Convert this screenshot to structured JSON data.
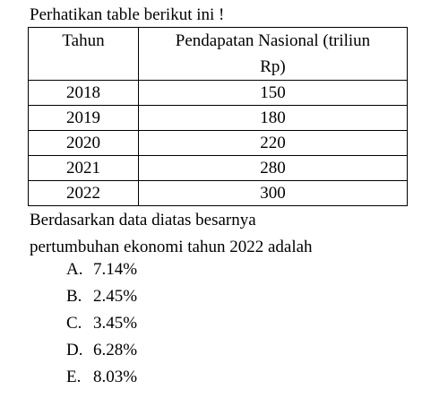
{
  "intro": "Perhatikan table berikut ini !",
  "table": {
    "headers": {
      "year": "Tahun",
      "income_line1": "Pendapatan Nasional (triliun",
      "income_line2": "Rp)"
    },
    "rows": [
      {
        "year": "2018",
        "value": "150"
      },
      {
        "year": "2019",
        "value": "180"
      },
      {
        "year": "2020",
        "value": "220"
      },
      {
        "year": "2021",
        "value": "280"
      },
      {
        "year": "2022",
        "value": "300"
      }
    ]
  },
  "question": {
    "line1": "Berdasarkan data diatas besarnya",
    "line2": "pertumbuhan ekonomi tahun 2022 adalah"
  },
  "options": [
    {
      "letter": "A.",
      "text": "7.14%"
    },
    {
      "letter": "B.",
      "text": "2.45%"
    },
    {
      "letter": "C.",
      "text": "3.45%"
    },
    {
      "letter": "D.",
      "text": "6.28%"
    },
    {
      "letter": "E.",
      "text": "8.03%"
    }
  ]
}
